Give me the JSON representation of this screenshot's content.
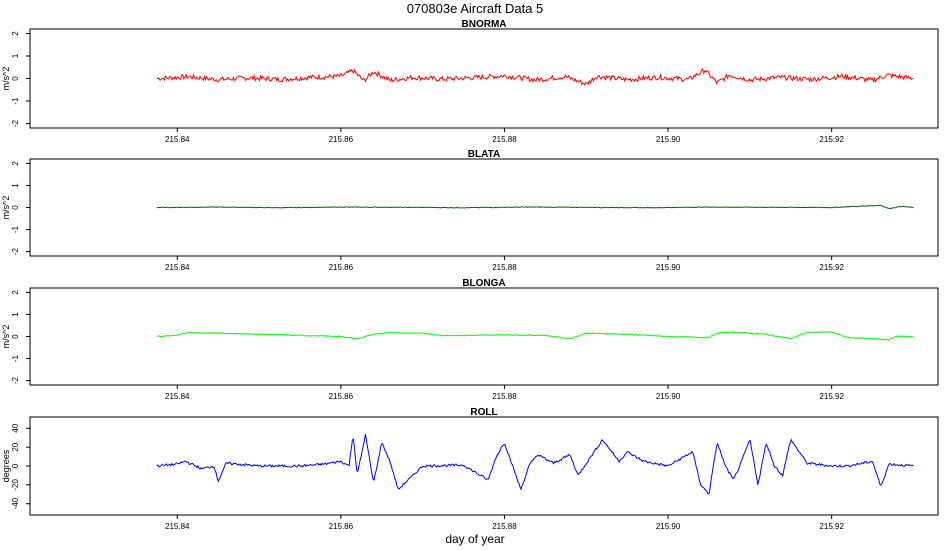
{
  "title": "070803e   Aircraft Data 5",
  "chart_data": [
    {
      "type": "line",
      "title": "BNORMA",
      "ylabel": "m/s^2",
      "xlabel": "",
      "color": "#ff0000",
      "xlim": [
        215.822,
        215.933
      ],
      "ylim": [
        -2.2,
        2.2
      ],
      "xticks": [
        "215.84",
        "215.86",
        "215.88",
        "215.90",
        "215.92"
      ],
      "yticks": [
        "-2",
        "-1",
        "0",
        "1",
        "2"
      ],
      "series": [
        {
          "x": [
            215.8375,
            215.8413,
            215.845,
            215.8488,
            215.8525,
            215.8563,
            215.86,
            215.8615,
            215.8628,
            215.864,
            215.866,
            215.8688,
            215.8725,
            215.8763,
            215.88,
            215.8838,
            215.8875,
            215.89,
            215.8913,
            215.895,
            215.8988,
            215.9025,
            215.9045,
            215.906,
            215.9075,
            215.91,
            215.9138,
            215.9175,
            215.9213,
            215.925,
            215.9268,
            215.93
          ],
          "values": [
            0,
            0.08,
            -0.05,
            0.03,
            -0.04,
            0.05,
            0.1,
            0.35,
            -0.1,
            0.3,
            -0.08,
            0.05,
            -0.03,
            0.04,
            0.12,
            -0.06,
            0.08,
            -0.25,
            0.1,
            -0.05,
            0.06,
            -0.05,
            0.38,
            -0.2,
            0.15,
            -0.06,
            0.05,
            -0.04,
            0.1,
            -0.08,
            0.15,
            0
          ]
        }
      ]
    },
    {
      "type": "line",
      "title": "BLATA",
      "ylabel": "m/s^2",
      "xlabel": "",
      "color": "#006400",
      "xlim": [
        215.822,
        215.933
      ],
      "ylim": [
        -2.2,
        2.2
      ],
      "xticks": [
        "215.84",
        "215.86",
        "215.88",
        "215.90",
        "215.92"
      ],
      "yticks": [
        "-2",
        "-1",
        "0",
        "1",
        "2"
      ],
      "series": [
        {
          "x": [
            215.8375,
            215.845,
            215.8525,
            215.86,
            215.8675,
            215.875,
            215.8825,
            215.89,
            215.8975,
            215.905,
            215.9125,
            215.92,
            215.926,
            215.927,
            215.9285,
            215.93
          ],
          "values": [
            0,
            0.02,
            -0.01,
            0.02,
            0.01,
            -0.01,
            0.02,
            0.01,
            -0.01,
            0.02,
            0.01,
            0,
            0.1,
            -0.05,
            0.05,
            0
          ]
        }
      ]
    },
    {
      "type": "line",
      "title": "BLONGA",
      "ylabel": "m/s^2",
      "xlabel": "",
      "color": "#00ff00",
      "xlim": [
        215.822,
        215.933
      ],
      "ylim": [
        -2.2,
        2.2
      ],
      "xticks": [
        "215.84",
        "215.86",
        "215.88",
        "215.90",
        "215.92"
      ],
      "yticks": [
        "-2",
        "-1",
        "0",
        "1",
        "2"
      ],
      "series": [
        {
          "x": [
            215.8375,
            215.84,
            215.841,
            215.845,
            215.85,
            215.855,
            215.86,
            215.862,
            215.864,
            215.866,
            215.87,
            215.872,
            215.876,
            215.88,
            215.885,
            215.888,
            215.89,
            215.895,
            215.9,
            215.905,
            215.906,
            215.908,
            215.912,
            215.915,
            215.917,
            215.92,
            215.922,
            215.925,
            215.927,
            215.928,
            215.93
          ],
          "values": [
            0,
            0.05,
            0.18,
            0.15,
            0.1,
            0.05,
            0,
            -0.1,
            0.1,
            0.18,
            0.15,
            0.05,
            0.05,
            0.08,
            0.05,
            -0.1,
            0.15,
            0.1,
            0,
            -0.05,
            0.15,
            0.2,
            0.1,
            -0.1,
            0.18,
            0.2,
            -0.05,
            -0.1,
            -0.15,
            0.02,
            0
          ]
        }
      ]
    },
    {
      "type": "line",
      "title": "ROLL",
      "ylabel": "degrees",
      "xlabel": "day of year",
      "color": "#0000ff",
      "xlim": [
        215.822,
        215.933
      ],
      "ylim": [
        -52,
        52
      ],
      "xticks": [
        "215.84",
        "215.86",
        "215.88",
        "215.90",
        "215.92"
      ],
      "yticks": [
        "-40",
        "-20",
        "0",
        "20",
        "40"
      ],
      "series": [
        {
          "x": [
            215.8375,
            215.84,
            215.841,
            215.843,
            215.8445,
            215.845,
            215.846,
            215.85,
            215.855,
            215.858,
            215.86,
            215.861,
            215.8615,
            215.862,
            215.863,
            215.864,
            215.865,
            215.866,
            215.867,
            215.87,
            215.875,
            215.878,
            215.879,
            215.88,
            215.882,
            215.883,
            215.884,
            215.886,
            215.888,
            215.889,
            215.89,
            215.892,
            215.894,
            215.895,
            215.897,
            215.9,
            215.903,
            215.904,
            215.905,
            215.906,
            215.907,
            215.908,
            215.909,
            215.91,
            215.911,
            215.912,
            215.913,
            215.914,
            215.915,
            215.917,
            215.92,
            215.922,
            215.925,
            215.926,
            215.927,
            215.93
          ],
          "values": [
            0,
            2,
            5,
            -3,
            0,
            -16,
            3,
            0,
            0,
            2,
            5,
            0,
            34,
            -10,
            33,
            -18,
            25,
            5,
            -25,
            0,
            1,
            -15,
            10,
            25,
            -25,
            0,
            12,
            3,
            12,
            -10,
            3,
            28,
            5,
            15,
            5,
            0,
            15,
            -20,
            -30,
            25,
            0,
            -15,
            5,
            28,
            -20,
            25,
            0,
            -10,
            28,
            3,
            0,
            0,
            5,
            -22,
            2,
            0
          ]
        }
      ]
    }
  ]
}
